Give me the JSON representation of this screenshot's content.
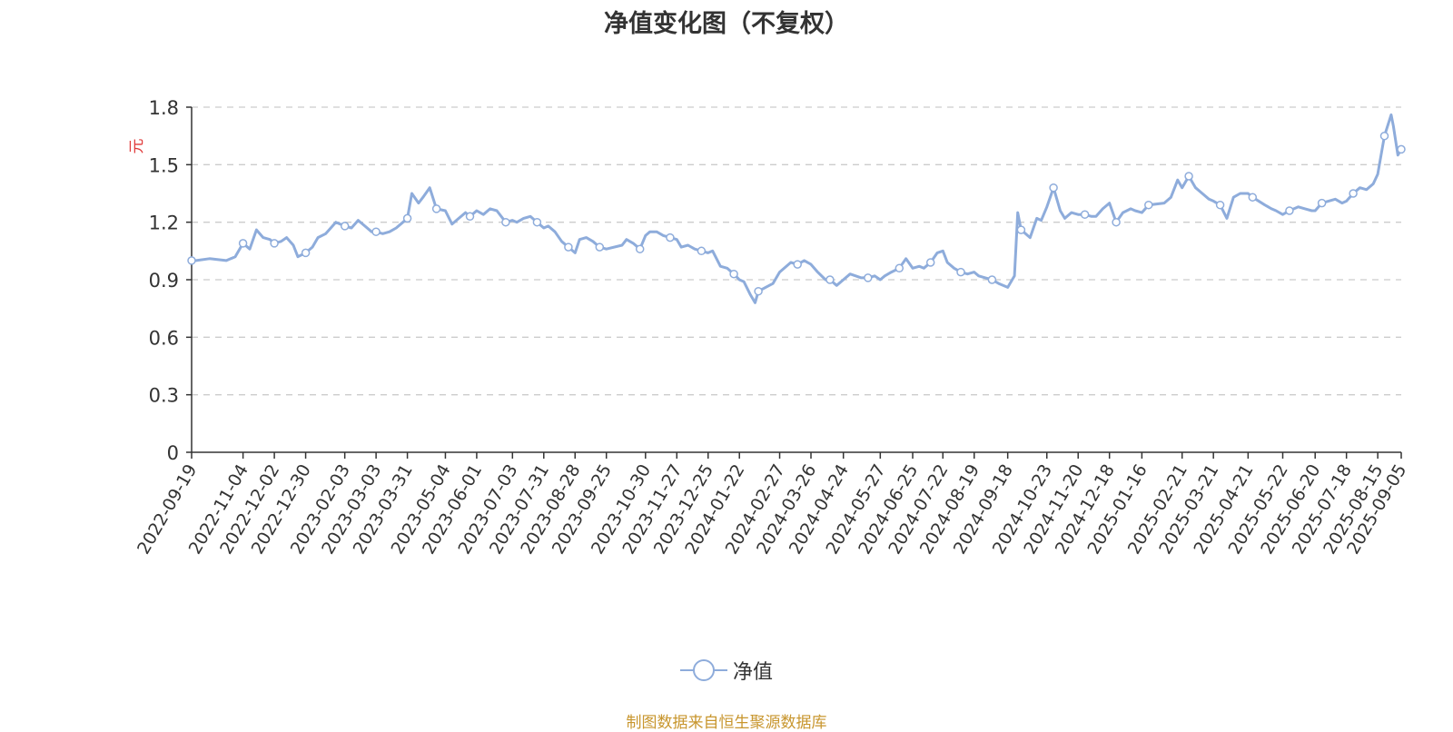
{
  "chart_data": {
    "type": "line",
    "title": "净值变化图（不复权）",
    "ylabel": "元",
    "ylim": [
      0,
      1.8
    ],
    "yticks": [
      0,
      0.3,
      0.6,
      0.9,
      1.2,
      1.5,
      1.8
    ],
    "grid": true,
    "legend_position": "bottom-center",
    "x_tick_labels": [
      "2022-09-19",
      "2022-11-04",
      "2022-12-02",
      "2022-12-30",
      "2023-02-03",
      "2023-03-03",
      "2023-03-31",
      "2023-05-04",
      "2023-06-01",
      "2023-07-03",
      "2023-07-31",
      "2023-08-28",
      "2023-09-25",
      "2023-10-30",
      "2023-11-27",
      "2023-12-25",
      "2024-01-22",
      "2024-02-27",
      "2024-03-26",
      "2024-04-24",
      "2024-05-27",
      "2024-06-25",
      "2024-07-22",
      "2024-08-19",
      "2024-09-18",
      "2024-10-23",
      "2024-11-20",
      "2024-12-18",
      "2025-01-16",
      "2025-02-21",
      "2025-03-21",
      "2025-04-21",
      "2025-05-22",
      "2025-06-20",
      "2025-07-18",
      "2025-08-15",
      "2025-09-05"
    ],
    "series": [
      {
        "name": "净值",
        "color": "#8eacdb",
        "marker": "circle",
        "x": [
          "2022-09-19",
          "2022-09-23",
          "2022-10-05",
          "2022-10-20",
          "2022-10-28",
          "2022-11-04",
          "2022-11-10",
          "2022-11-16",
          "2022-11-22",
          "2022-11-28",
          "2022-12-02",
          "2022-12-08",
          "2022-12-13",
          "2022-12-19",
          "2022-12-23",
          "2022-12-30",
          "2023-01-05",
          "2023-01-10",
          "2023-01-17",
          "2023-01-26",
          "2023-02-03",
          "2023-02-09",
          "2023-02-15",
          "2023-02-21",
          "2023-02-27",
          "2023-03-03",
          "2023-03-09",
          "2023-03-15",
          "2023-03-21",
          "2023-03-27",
          "2023-03-31",
          "2023-04-04",
          "2023-04-10",
          "2023-04-14",
          "2023-04-20",
          "2023-04-26",
          "2023-05-04",
          "2023-05-10",
          "2023-05-16",
          "2023-05-22",
          "2023-05-26",
          "2023-06-01",
          "2023-06-07",
          "2023-06-13",
          "2023-06-19",
          "2023-06-27",
          "2023-07-03",
          "2023-07-07",
          "2023-07-13",
          "2023-07-19",
          "2023-07-25",
          "2023-07-31",
          "2023-08-04",
          "2023-08-10",
          "2023-08-16",
          "2023-08-22",
          "2023-08-28",
          "2023-09-01",
          "2023-09-07",
          "2023-09-13",
          "2023-09-19",
          "2023-09-25",
          "2023-10-09",
          "2023-10-13",
          "2023-10-19",
          "2023-10-25",
          "2023-10-30",
          "2023-11-03",
          "2023-11-09",
          "2023-11-15",
          "2023-11-21",
          "2023-11-27",
          "2023-12-01",
          "2023-12-07",
          "2023-12-13",
          "2023-12-19",
          "2023-12-25",
          "2023-12-29",
          "2024-01-05",
          "2024-01-11",
          "2024-01-17",
          "2024-01-22",
          "2024-01-26",
          "2024-02-01",
          "2024-02-05",
          "2024-02-08",
          "2024-02-21",
          "2024-02-27",
          "2024-03-04",
          "2024-03-08",
          "2024-03-14",
          "2024-03-20",
          "2024-03-26",
          "2024-04-01",
          "2024-04-08",
          "2024-04-12",
          "2024-04-18",
          "2024-04-24",
          "2024-04-30",
          "2024-05-10",
          "2024-05-16",
          "2024-05-22",
          "2024-05-27",
          "2024-05-31",
          "2024-06-06",
          "2024-06-13",
          "2024-06-19",
          "2024-06-25",
          "2024-07-01",
          "2024-07-05",
          "2024-07-11",
          "2024-07-17",
          "2024-07-22",
          "2024-07-26",
          "2024-08-01",
          "2024-08-07",
          "2024-08-13",
          "2024-08-19",
          "2024-08-23",
          "2024-08-29",
          "2024-09-04",
          "2024-09-10",
          "2024-09-18",
          "2024-09-24",
          "2024-09-27",
          "2024-09-30",
          "2024-10-08",
          "2024-10-14",
          "2024-10-18",
          "2024-10-23",
          "2024-10-29",
          "2024-11-04",
          "2024-11-08",
          "2024-11-14",
          "2024-11-20",
          "2024-11-26",
          "2024-12-02",
          "2024-12-06",
          "2024-12-12",
          "2024-12-18",
          "2024-12-24",
          "2024-12-30",
          "2025-01-06",
          "2025-01-10",
          "2025-01-16",
          "2025-01-22",
          "2025-02-05",
          "2025-02-11",
          "2025-02-17",
          "2025-02-21",
          "2025-02-27",
          "2025-03-05",
          "2025-03-11",
          "2025-03-17",
          "2025-03-21",
          "2025-03-27",
          "2025-04-02",
          "2025-04-08",
          "2025-04-14",
          "2025-04-21",
          "2025-04-25",
          "2025-05-06",
          "2025-05-12",
          "2025-05-16",
          "2025-05-22",
          "2025-05-28",
          "2025-06-05",
          "2025-06-11",
          "2025-06-17",
          "2025-06-20",
          "2025-06-26",
          "2025-07-02",
          "2025-07-08",
          "2025-07-14",
          "2025-07-18",
          "2025-07-24",
          "2025-07-30",
          "2025-08-05",
          "2025-08-11",
          "2025-08-15",
          "2025-08-21",
          "2025-08-27",
          "2025-08-29",
          "2025-09-02",
          "2025-09-05"
        ],
        "values": [
          1.0,
          1.0,
          1.01,
          1.0,
          1.02,
          1.09,
          1.06,
          1.16,
          1.12,
          1.11,
          1.09,
          1.1,
          1.12,
          1.08,
          1.02,
          1.04,
          1.07,
          1.12,
          1.14,
          1.2,
          1.18,
          1.17,
          1.21,
          1.18,
          1.15,
          1.15,
          1.14,
          1.15,
          1.17,
          1.2,
          1.22,
          1.35,
          1.3,
          1.33,
          1.38,
          1.27,
          1.26,
          1.19,
          1.22,
          1.25,
          1.23,
          1.26,
          1.24,
          1.27,
          1.26,
          1.2,
          1.21,
          1.2,
          1.22,
          1.23,
          1.2,
          1.17,
          1.18,
          1.15,
          1.1,
          1.07,
          1.04,
          1.11,
          1.12,
          1.1,
          1.07,
          1.06,
          1.08,
          1.11,
          1.09,
          1.06,
          1.13,
          1.15,
          1.15,
          1.13,
          1.12,
          1.11,
          1.07,
          1.08,
          1.06,
          1.05,
          1.04,
          1.05,
          0.97,
          0.96,
          0.93,
          0.9,
          0.89,
          0.82,
          0.78,
          0.84,
          0.88,
          0.94,
          0.97,
          0.99,
          0.98,
          1.0,
          0.98,
          0.94,
          0.9,
          0.9,
          0.87,
          0.9,
          0.93,
          0.91,
          0.91,
          0.92,
          0.9,
          0.92,
          0.94,
          0.96,
          1.01,
          0.96,
          0.97,
          0.96,
          0.99,
          1.04,
          1.05,
          0.99,
          0.96,
          0.94,
          0.93,
          0.94,
          0.92,
          0.91,
          0.9,
          0.88,
          0.86,
          0.92,
          1.25,
          1.16,
          1.12,
          1.22,
          1.21,
          1.28,
          1.38,
          1.26,
          1.22,
          1.25,
          1.24,
          1.24,
          1.23,
          1.23,
          1.27,
          1.3,
          1.2,
          1.25,
          1.27,
          1.26,
          1.25,
          1.29,
          1.3,
          1.33,
          1.42,
          1.38,
          1.44,
          1.38,
          1.35,
          1.32,
          1.31,
          1.29,
          1.22,
          1.33,
          1.35,
          1.35,
          1.33,
          1.29,
          1.27,
          1.26,
          1.24,
          1.26,
          1.28,
          1.27,
          1.26,
          1.26,
          1.3,
          1.31,
          1.32,
          1.3,
          1.31,
          1.35,
          1.38,
          1.37,
          1.4,
          1.45,
          1.65,
          1.76,
          1.7,
          1.55,
          1.58
        ]
      }
    ]
  },
  "legend": {
    "label": "净值"
  },
  "source_note": "制图数据来自恒生聚源数据库",
  "colors": {
    "line": "#8eacdb",
    "ylabel": "#e03b3b",
    "source_note": "#c8962e",
    "grid": "#cccccc"
  }
}
